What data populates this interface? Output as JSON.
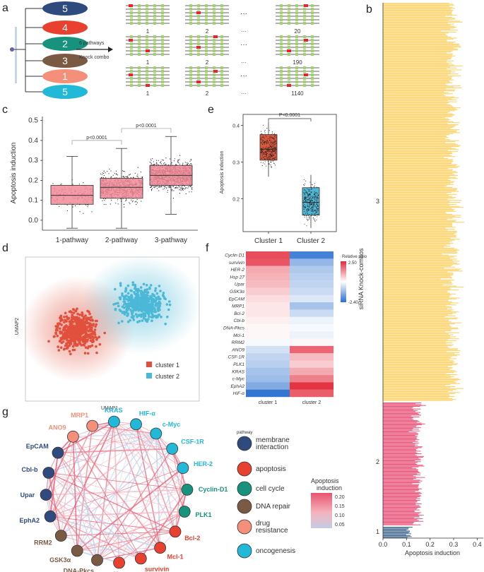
{
  "panel_labels": [
    "a",
    "b",
    "c",
    "d",
    "e",
    "f",
    "g"
  ],
  "panel_a": {
    "ovals": [
      {
        "label": "5",
        "color": "#2f4a7e"
      },
      {
        "label": "4",
        "color": "#e8412f"
      },
      {
        "label": "2",
        "color": "#17927d"
      },
      {
        "label": "3",
        "color": "#7b5a44"
      },
      {
        "label": "1",
        "color": "#f4907a"
      },
      {
        "label": "5",
        "color": "#22b8d8"
      }
    ],
    "arrow_line1": "6 pathways",
    "arrow_line2": "Knock  combo",
    "ellipsis": "···",
    "row_labels": [
      [
        "1",
        "2",
        "···",
        "20"
      ],
      [
        "1",
        "2",
        "···",
        "190"
      ],
      [
        "1",
        "2",
        "···",
        "1140"
      ]
    ]
  },
  "panel_b": {
    "ylabel": "siRNA Knock-combos",
    "xlabel": "Apoptosis induction",
    "xticks": [
      "0.0",
      "0.1",
      "0.2",
      "0.3",
      "0.4"
    ],
    "group_labels": [
      "3",
      "2",
      "1"
    ],
    "colors": {
      "g3": "#fbd46d",
      "g2": "#e8547a",
      "g1": "#4b6f95"
    }
  },
  "panel_c": {
    "chart_data": {
      "type": "box",
      "ylabel": "Apoptosis induction",
      "categories": [
        "1-pathway",
        "2-pathway",
        "3-pathway"
      ],
      "yticks": [
        "0.0",
        "0.1",
        "0.2",
        "0.3",
        "0.4",
        "0.5"
      ],
      "ylim": [
        -0.05,
        0.52
      ],
      "boxes": [
        {
          "min": -0.04,
          "q1": 0.08,
          "median": 0.125,
          "q3": 0.175,
          "max": 0.32
        },
        {
          "min": -0.04,
          "q1": 0.11,
          "median": 0.165,
          "q3": 0.21,
          "max": 0.36
        },
        {
          "min": 0.03,
          "q1": 0.175,
          "median": 0.225,
          "q3": 0.275,
          "max": 0.42
        }
      ],
      "comparisons": [
        {
          "label": "p<0.0001"
        },
        {
          "label": "p<0.0001"
        }
      ],
      "box_color": "#f28a98"
    }
  },
  "panel_d": {
    "xlabel": "UMAP1",
    "ylabel": "UMAP2",
    "legend": [
      {
        "label": "cluster 1",
        "color": "#e1503c"
      },
      {
        "label": "cluster 2",
        "color": "#4ab8d6"
      }
    ]
  },
  "panel_e": {
    "chart_data": {
      "type": "box",
      "ylabel": "Apoptosis induction",
      "categories": [
        "Cluster 1",
        "Cluster 2"
      ],
      "yticks": [
        "0.2",
        "0.3",
        "0.4"
      ],
      "ylim": [
        0.11,
        0.43
      ],
      "boxes": [
        {
          "min": 0.26,
          "q1": 0.305,
          "median": 0.335,
          "q3": 0.375,
          "max": 0.41,
          "color": "#d9573b"
        },
        {
          "min": 0.12,
          "q1": 0.155,
          "median": 0.19,
          "q3": 0.23,
          "max": 0.265,
          "color": "#4fb6d6"
        }
      ],
      "comparison": "P<0.0001"
    }
  },
  "panel_f": {
    "chart_data": {
      "type": "heatmap",
      "rows": [
        "Cyclin D1",
        "survivin",
        "HER-2",
        "Hsp 27",
        "Upar",
        "GSK3α",
        "EpCAM",
        "MRP1",
        "Bcl-2",
        "Cbl-b",
        "DNA-Pkcs",
        "Mcl-1",
        "RRM2",
        "ANO9",
        "CSF-1R",
        "PLK1",
        "KRAS",
        "c-Myc",
        "EphA2",
        "HIF-α"
      ],
      "columns": [
        "cluster 1",
        "cluster 2"
      ],
      "values": [
        [
          2.1,
          -2.1
        ],
        [
          2.0,
          -1.2
        ],
        [
          1.0,
          -0.9
        ],
        [
          0.9,
          -0.8
        ],
        [
          0.8,
          -0.7
        ],
        [
          0.6,
          -0.6
        ],
        [
          0.4,
          -0.4
        ],
        [
          0.3,
          -1.0
        ],
        [
          0.3,
          -0.6
        ],
        [
          0.2,
          -0.2
        ],
        [
          0.1,
          -0.1
        ],
        [
          0.1,
          -0.2
        ],
        [
          -0.1,
          0.1
        ],
        [
          -0.5,
          1.8
        ],
        [
          -0.7,
          0.8
        ],
        [
          -0.8,
          0.6
        ],
        [
          -1.0,
          1.0
        ],
        [
          -1.1,
          1.5
        ],
        [
          -1.4,
          2.4
        ],
        [
          -2.3,
          1.9
        ]
      ],
      "legend_title": "Relative ratio",
      "legend_max": "2.50",
      "legend_min": "-2.40",
      "vmin": -2.4,
      "vmax": 2.5
    }
  },
  "panel_g": {
    "nodes": [
      {
        "label": "MRP1",
        "color": "#f4907a"
      },
      {
        "label": "KRAS",
        "color": "#22b8d8"
      },
      {
        "label": "HIF-α",
        "color": "#22b8d8"
      },
      {
        "label": "c-Myc",
        "color": "#22b8d8"
      },
      {
        "label": "CSF-1R",
        "color": "#22b8d8"
      },
      {
        "label": "HER-2",
        "color": "#22b8d8"
      },
      {
        "label": "Cyclin-D1",
        "color": "#17927d"
      },
      {
        "label": "PLK1",
        "color": "#17927d"
      },
      {
        "label": "Bcl-2",
        "color": "#e8412f"
      },
      {
        "label": "Mcl-1",
        "color": "#e8412f"
      },
      {
        "label": "survivin",
        "color": "#e8412f"
      },
      {
        "label": "Hsp",
        "color": "#e8412f"
      },
      {
        "label": "DNA-Pkcs",
        "color": "#7b5a44"
      },
      {
        "label": "GSK3α",
        "color": "#7b5a44"
      },
      {
        "label": "RRM2",
        "color": "#7b5a44"
      },
      {
        "label": "EphA2",
        "color": "#2f4a7e"
      },
      {
        "label": "Upar",
        "color": "#2f4a7e"
      },
      {
        "label": "Cbl-b",
        "color": "#2f4a7e"
      },
      {
        "label": "EpCAM",
        "color": "#2f4a7e"
      },
      {
        "label": "ANO9",
        "color": "#f4907a"
      }
    ],
    "legend_title": "pathway",
    "legend": [
      {
        "label": "membrane\ninteraction",
        "color": "#2f4a7e"
      },
      {
        "label": "apoptosis",
        "color": "#e8412f"
      },
      {
        "label": "cell cycle",
        "color": "#17927d"
      },
      {
        "label": "DNA repair",
        "color": "#7b5a44"
      },
      {
        "label": "drug\nresistance",
        "color": "#f4907a"
      },
      {
        "label": "oncogenesis",
        "color": "#22b8d8"
      }
    ],
    "edge_legend_title": "Apoptosis\ninduction",
    "edge_legend_ticks": [
      "0.20",
      "0.15",
      "0.10",
      "0.05"
    ]
  }
}
